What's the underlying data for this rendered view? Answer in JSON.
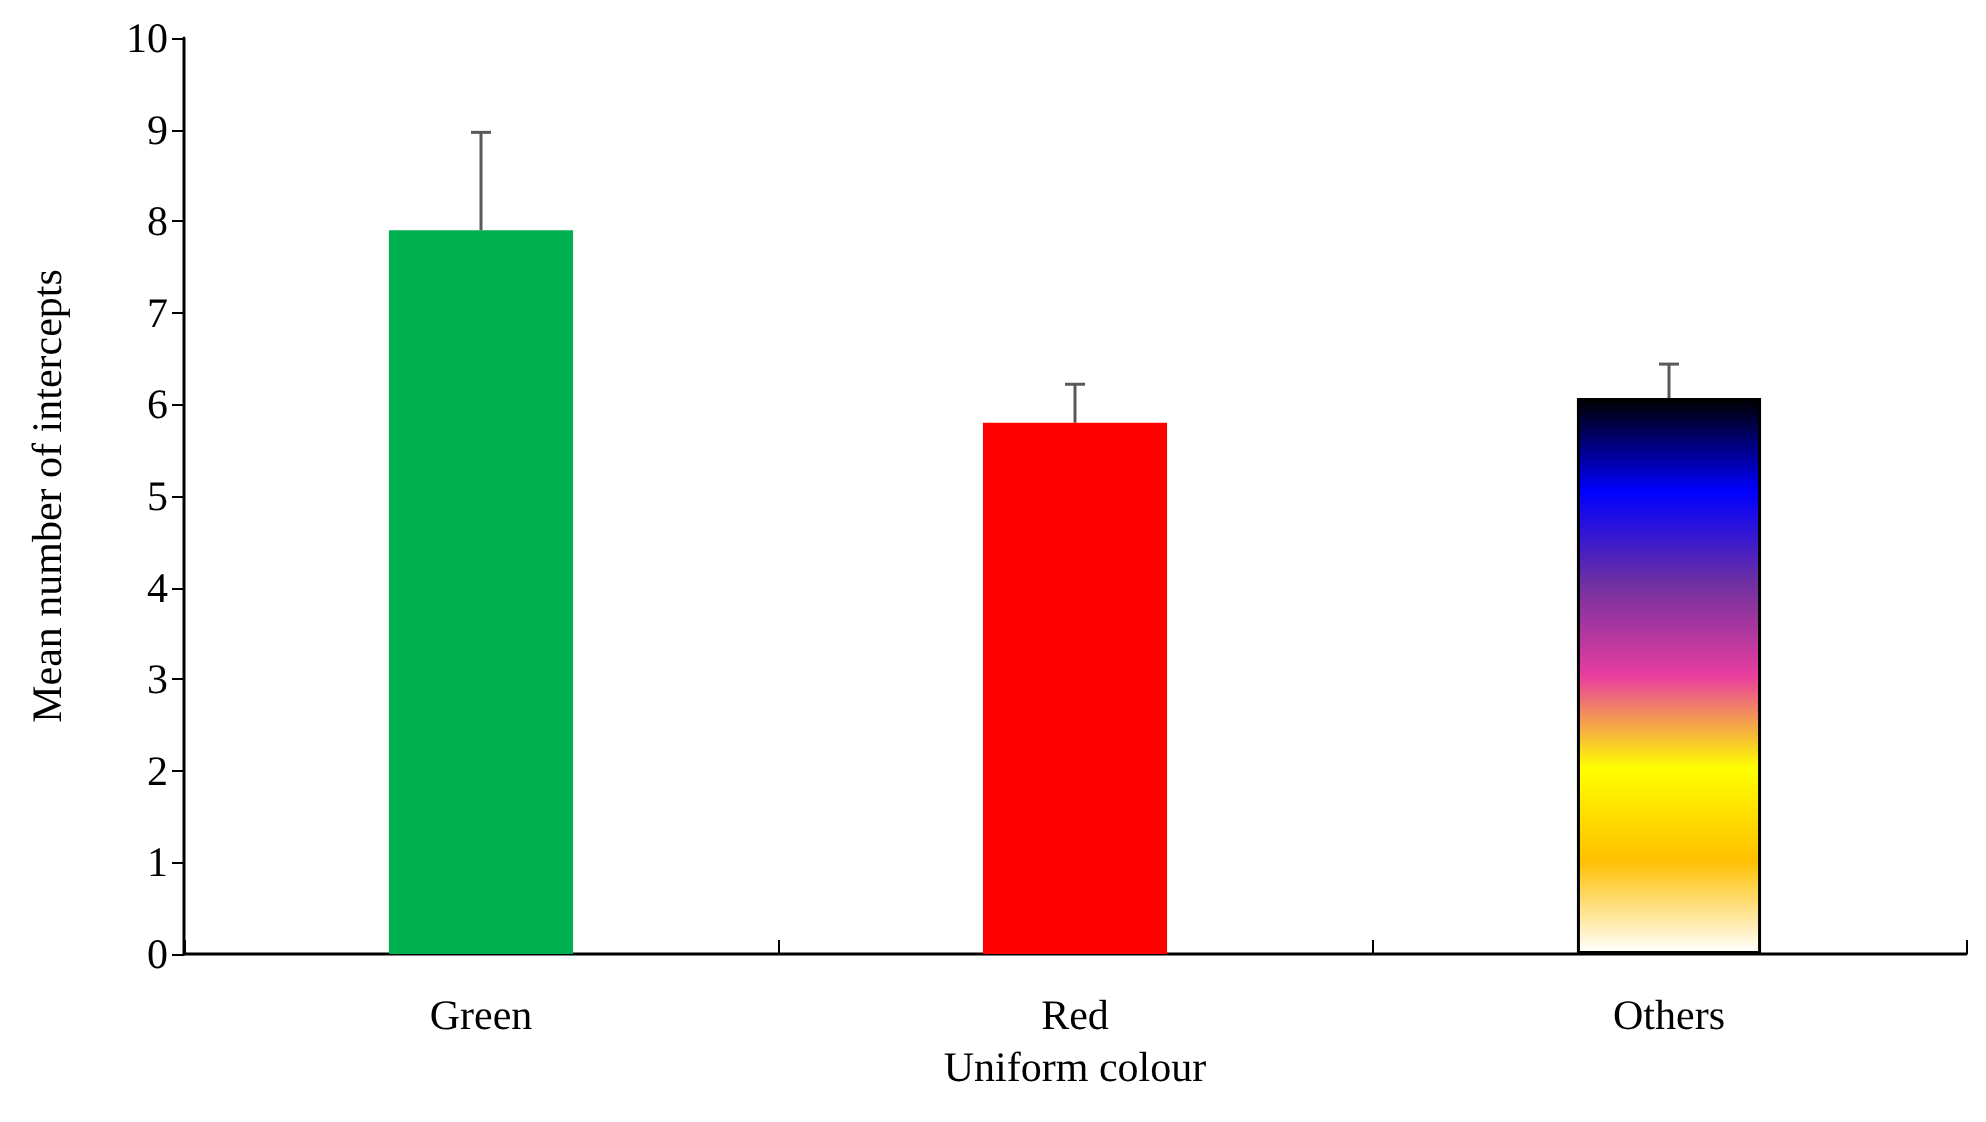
{
  "chart_data": {
    "type": "bar",
    "xlabel": "Uniform colour",
    "ylabel": "Mean number of intercepts",
    "categories": [
      "Green",
      "Red",
      "Others"
    ],
    "values": [
      7.9,
      5.8,
      6.07
    ],
    "colors": [
      "#00b050",
      "#ff0000",
      [
        "#ffffff",
        "#ffc000",
        "#ffff00",
        "#e83e9e",
        "#7030a0",
        "#0000ff",
        "#000000"
      ]
    ],
    "errors": [
      [
        7.9,
        8.97
      ],
      [
        5.8,
        6.22
      ],
      [
        6.07,
        6.44
      ]
    ],
    "ylim": [
      0,
      10
    ],
    "yticks": [
      0,
      1,
      2,
      3,
      4,
      5,
      6,
      7,
      8,
      9,
      10
    ],
    "grid": false
  }
}
